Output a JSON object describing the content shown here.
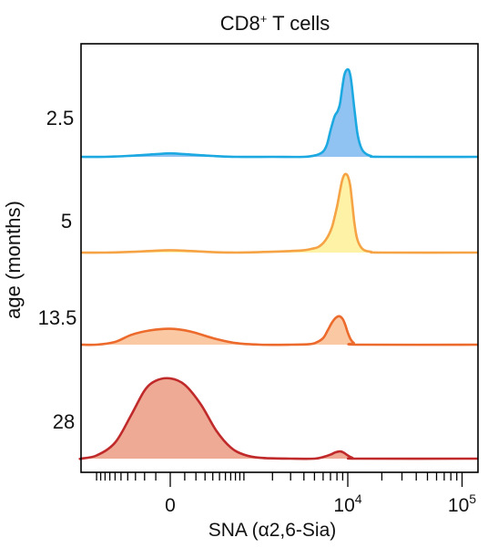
{
  "chart_data": {
    "type": "area",
    "title": "CD8",
    "title_superscript": "+",
    "title_suffix": " T cells",
    "xlabel": "SNA (α2,6-Sia)",
    "ylabel": "age (months)",
    "x_scale": "biexponential",
    "xlim": [
      -3000,
      200000
    ],
    "x_ticks": [
      {
        "value": 0,
        "label": "0"
      },
      {
        "value": 10000,
        "label": "10",
        "label_sup": "4"
      },
      {
        "value": 100000,
        "label": "10",
        "label_sup": "5"
      }
    ],
    "grid": false,
    "legend": "none",
    "series": [
      {
        "name": "2.5",
        "color": "#1ca8e0",
        "fill": "#90c3f2",
        "points": [
          [
            -3000,
            0
          ],
          [
            -800,
            0
          ],
          [
            -400,
            1
          ],
          [
            -100,
            3
          ],
          [
            0,
            4
          ],
          [
            100,
            3
          ],
          [
            400,
            1
          ],
          [
            800,
            0
          ],
          [
            2000,
            0
          ],
          [
            4000,
            0
          ],
          [
            5200,
            2
          ],
          [
            6000,
            6
          ],
          [
            6500,
            14
          ],
          [
            7000,
            30
          ],
          [
            7600,
            46
          ],
          [
            8100,
            52
          ],
          [
            8500,
            60
          ],
          [
            8900,
            78
          ],
          [
            9300,
            93
          ],
          [
            9600,
            98
          ],
          [
            10000,
            100
          ],
          [
            10300,
            98
          ],
          [
            10700,
            88
          ],
          [
            11100,
            70
          ],
          [
            11600,
            48
          ],
          [
            12200,
            26
          ],
          [
            13000,
            12
          ],
          [
            14000,
            5
          ],
          [
            16000,
            1
          ],
          [
            20000,
            0
          ],
          [
            200000,
            0
          ]
        ]
      },
      {
        "name": "5",
        "color": "#f5a345",
        "fill": "#fdf2a6",
        "points": [
          [
            -3000,
            0
          ],
          [
            -800,
            0
          ],
          [
            -300,
            1
          ],
          [
            0,
            3
          ],
          [
            300,
            1
          ],
          [
            800,
            0
          ],
          [
            2000,
            1
          ],
          [
            3000,
            2
          ],
          [
            4000,
            3
          ],
          [
            4800,
            5
          ],
          [
            5400,
            7
          ],
          [
            6000,
            12
          ],
          [
            6600,
            20
          ],
          [
            7200,
            32
          ],
          [
            7700,
            48
          ],
          [
            8100,
            62
          ],
          [
            8500,
            78
          ],
          [
            8900,
            92
          ],
          [
            9300,
            99
          ],
          [
            9700,
            100
          ],
          [
            10100,
            96
          ],
          [
            10500,
            86
          ],
          [
            10900,
            66
          ],
          [
            11400,
            40
          ],
          [
            12000,
            20
          ],
          [
            12800,
            9
          ],
          [
            14000,
            3
          ],
          [
            16000,
            1
          ],
          [
            20000,
            0
          ],
          [
            200000,
            0
          ]
        ]
      },
      {
        "name": "13.5",
        "color": "#ec6a2c",
        "fill": "#fac9a4",
        "points": [
          [
            -3000,
            0
          ],
          [
            -1000,
            0
          ],
          [
            -600,
            5
          ],
          [
            -350,
            18
          ],
          [
            -150,
            26
          ],
          [
            0,
            29
          ],
          [
            150,
            24
          ],
          [
            400,
            12
          ],
          [
            800,
            3
          ],
          [
            1500,
            0
          ],
          [
            3000,
            0
          ],
          [
            4500,
            1
          ],
          [
            5200,
            4
          ],
          [
            6000,
            12
          ],
          [
            6600,
            26
          ],
          [
            7200,
            40
          ],
          [
            7800,
            49
          ],
          [
            8400,
            52
          ],
          [
            9000,
            47
          ],
          [
            9500,
            36
          ],
          [
            10000,
            22
          ],
          [
            10600,
            10
          ],
          [
            11300,
            3
          ],
          [
            12500,
            0
          ],
          [
            200000,
            0
          ]
        ]
      },
      {
        "name": "28",
        "color": "#c02a2a",
        "fill": "#efaa95",
        "points": [
          [
            -3000,
            0
          ],
          [
            -1500,
            0
          ],
          [
            -1000,
            4
          ],
          [
            -600,
            20
          ],
          [
            -350,
            55
          ],
          [
            -200,
            85
          ],
          [
            -100,
            97
          ],
          [
            0,
            100
          ],
          [
            100,
            92
          ],
          [
            250,
            68
          ],
          [
            450,
            35
          ],
          [
            700,
            14
          ],
          [
            1000,
            5
          ],
          [
            1500,
            1
          ],
          [
            3000,
            0
          ],
          [
            5000,
            0
          ],
          [
            6000,
            2
          ],
          [
            7000,
            5
          ],
          [
            7800,
            8
          ],
          [
            8600,
            9
          ],
          [
            9300,
            7
          ],
          [
            10000,
            4
          ],
          [
            11000,
            1
          ],
          [
            12500,
            0
          ],
          [
            200000,
            0
          ]
        ]
      }
    ]
  }
}
